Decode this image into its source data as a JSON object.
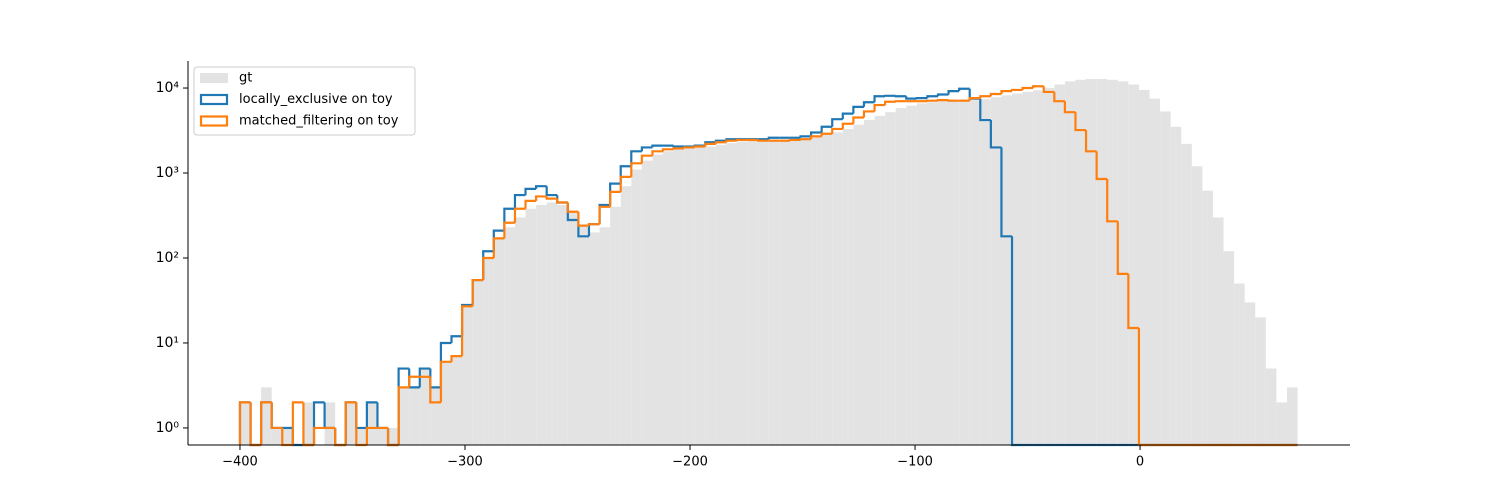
{
  "chart_data": {
    "type": "histogram",
    "log_y": true,
    "legend": "upper left",
    "bins": [
      -400,
      -395.3,
      -390.6,
      -385.9,
      -381.2,
      -376.5,
      -371.8,
      -367.1,
      -362.4,
      -357.7,
      -353,
      -348.3,
      -343.6,
      -338.9,
      -334.2,
      -329.5,
      -324.8,
      -320.1,
      -315.4,
      -310.7,
      -306,
      -301.3,
      -296.6,
      -291.9,
      -287.2,
      -282.5,
      -277.8,
      -273.1,
      -268.4,
      -263.7,
      -259,
      -254.3,
      -249.6,
      -244.9,
      -240.2,
      -235.5,
      -230.8,
      -226.1,
      -221.4,
      -216.7,
      -212,
      -207.3,
      -202.6,
      -197.9,
      -193.2,
      -188.5,
      -183.8,
      -179.1,
      -174.4,
      -169.7,
      -165,
      -160.3,
      -155.6,
      -150.9,
      -146.2,
      -141.5,
      -136.8,
      -132.1,
      -127.4,
      -122.7,
      -118,
      -113.3,
      -108.6,
      -103.9,
      -99.2,
      -94.5,
      -89.8,
      -85.1,
      -80.4,
      -75.7,
      -71,
      -66.3,
      -61.6,
      -56.9,
      -52.2,
      -47.5,
      -42.8,
      -38.1,
      -33.4,
      -28.7,
      -24,
      -19.3,
      -14.6,
      -9.9,
      -5.2,
      -0.5,
      4.2,
      8.9,
      13.6,
      18.3,
      23,
      27.7,
      32.4,
      37.1,
      41.8,
      46.5,
      51.2,
      55.9,
      60.6,
      65.3,
      70
    ],
    "series": [
      {
        "name": "gt",
        "style": "filled",
        "color": "#e3e3e3",
        "values": [
          2,
          0,
          3,
          1,
          1,
          0,
          2,
          0,
          2,
          0,
          2,
          1,
          2,
          1,
          1,
          3,
          3,
          5,
          3,
          6,
          7,
          27,
          55,
          100,
          170,
          230,
          300,
          380,
          420,
          450,
          420,
          350,
          250,
          200,
          230,
          400,
          700,
          1100,
          1400,
          1650,
          1800,
          1900,
          1950,
          2000,
          2050,
          2150,
          2250,
          2350,
          2400,
          2400,
          2400,
          2400,
          2450,
          2500,
          2600,
          2800,
          3000,
          3300,
          3700,
          4200,
          4700,
          5200,
          5800,
          6200,
          6600,
          6800,
          7000,
          7100,
          7000,
          7200,
          7400,
          7800,
          8200,
          8600,
          9000,
          9400,
          10000,
          11000,
          12000,
          12500,
          12800,
          12800,
          12500,
          12000,
          11000,
          9500,
          7500,
          5300,
          3500,
          2200,
          1200,
          620,
          300,
          120,
          50,
          30,
          20,
          5,
          2,
          3
        ]
      },
      {
        "name": "locally_exclusive on toy",
        "style": "step",
        "color": "#1f77b4",
        "values": [
          2,
          0,
          2,
          1,
          1,
          0,
          0,
          2,
          1,
          0,
          2,
          1,
          2,
          1,
          0,
          5,
          3,
          5,
          3,
          10,
          12,
          28,
          55,
          120,
          210,
          380,
          550,
          650,
          700,
          550,
          450,
          280,
          180,
          250,
          420,
          750,
          1200,
          1800,
          2000,
          2100,
          2100,
          2050,
          2050,
          2100,
          2300,
          2400,
          2500,
          2500,
          2500,
          2500,
          2600,
          2600,
          2600,
          2700,
          3000,
          3500,
          4300,
          5000,
          6000,
          6800,
          8000,
          8100,
          8000,
          7500,
          7600,
          8000,
          8400,
          9200,
          9800,
          7500,
          4200,
          2000,
          180,
          0,
          0,
          0,
          0,
          0,
          0,
          0,
          0,
          0,
          0,
          0,
          0,
          0,
          0,
          0,
          0,
          0,
          0,
          0,
          0,
          0,
          0,
          0,
          0,
          0,
          0,
          0
        ]
      },
      {
        "name": "matched_filtering on toy",
        "style": "step",
        "color": "#ff7f0e",
        "values": [
          2,
          0,
          2,
          1,
          0,
          2,
          0,
          1,
          1,
          0,
          2,
          0,
          1,
          1,
          0,
          3,
          4,
          4,
          2,
          6,
          7,
          27,
          55,
          100,
          170,
          260,
          380,
          470,
          530,
          500,
          450,
          350,
          240,
          250,
          400,
          600,
          900,
          1300,
          1600,
          1800,
          1900,
          1950,
          2000,
          2050,
          2200,
          2300,
          2400,
          2450,
          2450,
          2400,
          2400,
          2400,
          2450,
          2500,
          2700,
          2900,
          3300,
          3800,
          4500,
          5300,
          6300,
          6900,
          7000,
          7000,
          7000,
          7100,
          7200,
          7100,
          7100,
          7600,
          8000,
          8500,
          9200,
          9500,
          10000,
          10500,
          9000,
          7000,
          5200,
          3200,
          1800,
          850,
          270,
          65,
          15,
          0,
          0,
          0,
          0,
          0,
          0,
          0,
          0,
          0,
          0,
          0,
          0,
          0,
          0,
          0
        ]
      }
    ],
    "xlim": [
      -423.1,
      93.3
    ],
    "ylim": [
      0.63,
      20800
    ],
    "xticks": [
      {
        "value": -400,
        "label": "−400"
      },
      {
        "value": -300,
        "label": "−300"
      },
      {
        "value": -200,
        "label": "−200"
      },
      {
        "value": -100,
        "label": "−100"
      },
      0
    ],
    "yticks": [
      {
        "value": 1,
        "label": "10⁰"
      },
      {
        "value": 10,
        "label": "10¹"
      },
      {
        "value": 100,
        "label": "10²"
      },
      {
        "value": 1000,
        "label": "10³"
      },
      {
        "value": 10000,
        "label": "10⁴"
      }
    ]
  }
}
